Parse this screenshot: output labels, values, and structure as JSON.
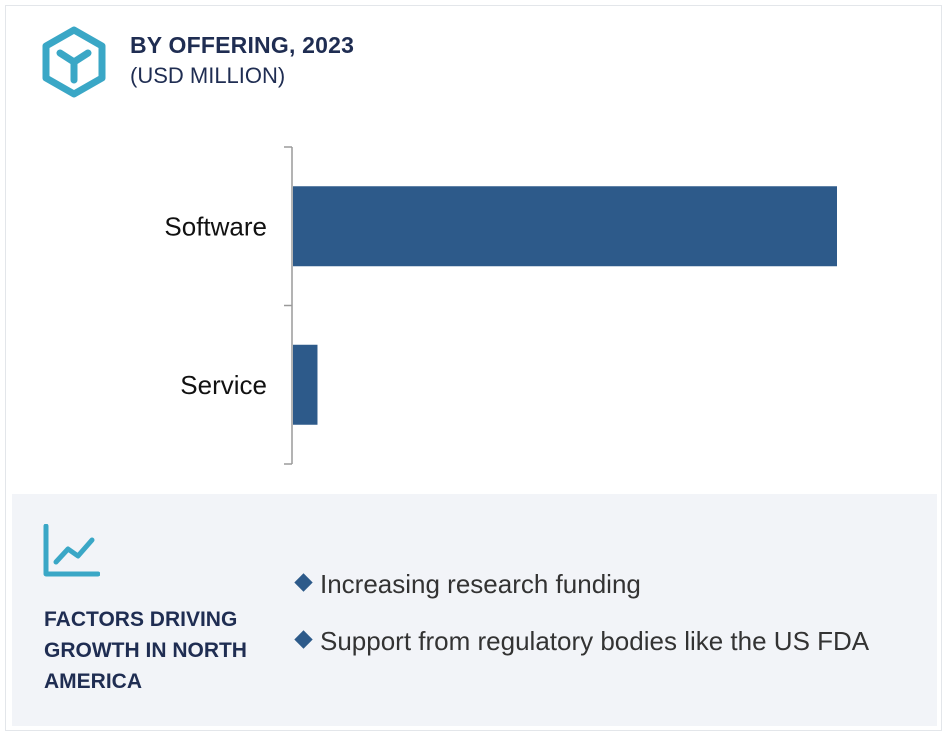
{
  "header": {
    "title": "BY OFFERING, 2023",
    "subtitle": "(USD MILLION)",
    "icon": "cube-icon",
    "icon_color": "#3aa7c6"
  },
  "chart_data": {
    "type": "bar",
    "orientation": "horizontal",
    "categories": [
      "Software",
      "Service"
    ],
    "values": [
      100,
      4.5
    ],
    "title": "BY OFFERING, 2023",
    "subtitle": "(USD MILLION)",
    "xlabel": "",
    "ylabel": "",
    "xlim": [
      0,
      100
    ],
    "grid": false,
    "bar_color": "#2d5a8a"
  },
  "factors": {
    "icon": "trend-chart-icon",
    "heading": "FACTORS DRIVING GROWTH IN NORTH AMERICA",
    "items": [
      "Increasing research funding",
      "Support from regulatory bodies like the US FDA"
    ]
  },
  "colors": {
    "accent": "#3aa7c6",
    "bar": "#2d5a8a",
    "heading": "#1f2d52",
    "panel_bg": "#f2f4f8"
  }
}
